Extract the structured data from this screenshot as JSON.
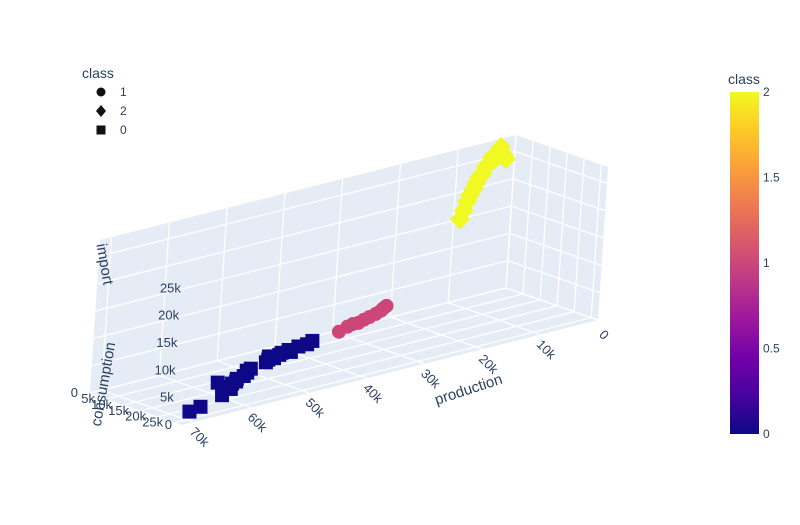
{
  "chart_data": {
    "type": "scatter",
    "dimensions": 3,
    "legend": {
      "title": "class",
      "placement": "top-left",
      "items": [
        {
          "label": "1",
          "symbol": "circle"
        },
        {
          "label": "2",
          "symbol": "diamond"
        },
        {
          "label": "0",
          "symbol": "square"
        }
      ]
    },
    "colorbar": {
      "title": "class",
      "range": [
        0,
        2
      ],
      "ticks": [
        "0",
        "0.5",
        "1",
        "1.5",
        "2"
      ],
      "colorscale": [
        "#0d0887",
        "#46039f",
        "#7201a8",
        "#9c179e",
        "#bd3786",
        "#d8576b",
        "#ed7953",
        "#fb9f3a",
        "#fdca26",
        "#f0f921"
      ]
    },
    "axes": {
      "x": {
        "title": "production",
        "ticks": [
          "0",
          "10k",
          "20k",
          "30k",
          "40k",
          "50k",
          "60k",
          "70k"
        ],
        "range": [
          0,
          72000
        ]
      },
      "y": {
        "title": "consumption",
        "ticks": [
          "0",
          "5k",
          "10k",
          "15k",
          "20k",
          "25k"
        ],
        "range": [
          0,
          27000
        ]
      },
      "z": {
        "title": "import",
        "ticks": [
          "0",
          "5k",
          "10k",
          "15k",
          "20k",
          "25k"
        ],
        "range": [
          0,
          28000
        ]
      }
    },
    "series": [
      {
        "name": "0",
        "symbol": "square",
        "color": "#0d0887",
        "points": [
          [
            69000,
            24000,
            1000
          ],
          [
            66500,
            23000,
            1000
          ],
          [
            61000,
            20000,
            1000
          ],
          [
            58000,
            17500,
            800
          ],
          [
            58000,
            16000,
            700
          ],
          [
            57500,
            15500,
            600
          ],
          [
            56000,
            14500,
            600
          ],
          [
            57000,
            12000,
            500
          ],
          [
            55000,
            14000,
            600
          ],
          [
            54000,
            12500,
            500
          ],
          [
            52500,
            12000,
            500
          ],
          [
            51000,
            10500,
            400
          ],
          [
            50500,
            9500,
            400
          ],
          [
            49500,
            9000,
            400
          ],
          [
            46000,
            7500,
            300
          ],
          [
            45000,
            6500,
            300
          ],
          [
            44000,
            6500,
            300
          ],
          [
            44000,
            5000,
            300
          ],
          [
            42500,
            5500,
            300
          ],
          [
            41500,
            4500,
            200
          ],
          [
            40500,
            5500,
            300
          ],
          [
            40000,
            4000,
            200
          ],
          [
            38000,
            3500,
            200
          ],
          [
            36500,
            3500,
            200
          ],
          [
            35000,
            2500,
            200
          ]
        ]
      },
      {
        "name": "1",
        "symbol": "circle",
        "color": "#cc4778",
        "points": [
          [
            30000,
            1800,
            400
          ],
          [
            28000,
            900,
            600
          ],
          [
            27000,
            800,
            800
          ],
          [
            26000,
            700,
            700
          ],
          [
            25000,
            600,
            1000
          ],
          [
            24000,
            500,
            1200
          ],
          [
            23000,
            600,
            1500
          ],
          [
            22000,
            400,
            1800
          ],
          [
            21500,
            300,
            2100
          ],
          [
            21000,
            300,
            2400
          ]
        ]
      },
      {
        "name": "2",
        "symbol": "diamond",
        "color": "#f0f921",
        "points": [
          [
            9000,
            200,
            15000
          ],
          [
            8500,
            300,
            16500
          ],
          [
            8000,
            250,
            18000
          ],
          [
            7500,
            150,
            19000
          ],
          [
            7000,
            200,
            20000
          ],
          [
            6500,
            100,
            21000
          ],
          [
            6000,
            150,
            22000
          ],
          [
            5500,
            100,
            22500
          ],
          [
            5000,
            50,
            23500
          ],
          [
            4500,
            100,
            24000
          ],
          [
            4000,
            50,
            25000
          ],
          [
            3500,
            50,
            24500
          ],
          [
            3000,
            20,
            25500
          ],
          [
            2500,
            10,
            26500
          ],
          [
            2000,
            10,
            25000
          ],
          [
            1500,
            10,
            24000
          ]
        ]
      }
    ]
  }
}
